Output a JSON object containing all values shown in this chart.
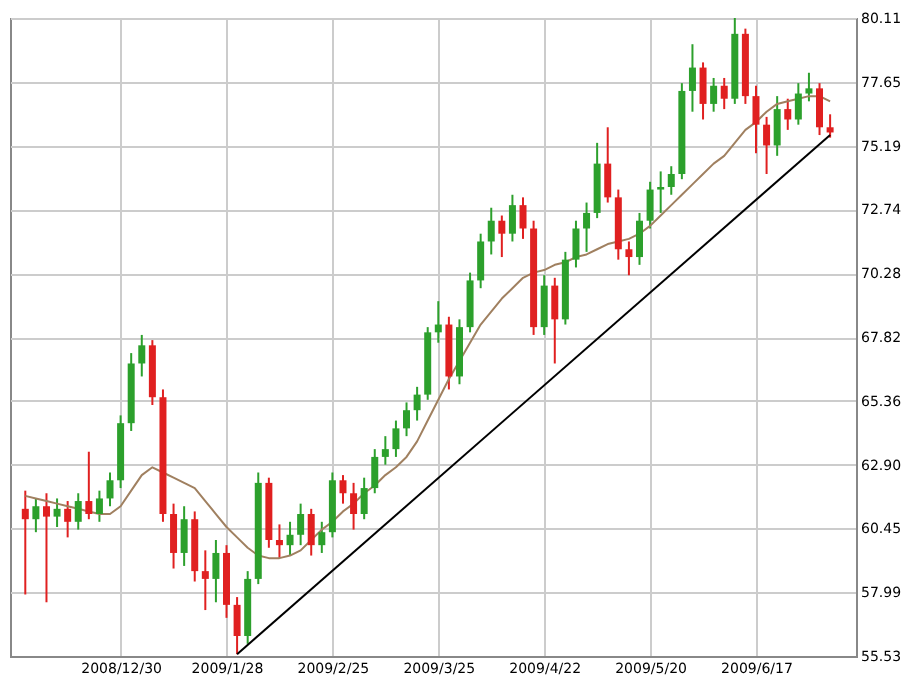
{
  "chart_data": {
    "type": "candlestick",
    "categories": [
      null,
      null,
      null,
      null,
      null,
      null,
      null,
      null,
      null,
      "2008/12/30",
      null,
      null,
      null,
      null,
      null,
      null,
      null,
      null,
      null,
      "2009/1/28",
      null,
      null,
      null,
      null,
      null,
      null,
      null,
      null,
      null,
      "2009/2/25",
      null,
      null,
      null,
      null,
      null,
      null,
      null,
      null,
      null,
      "2009/3/25",
      null,
      null,
      null,
      null,
      null,
      null,
      null,
      null,
      null,
      "2009/4/22",
      null,
      null,
      null,
      null,
      null,
      null,
      null,
      null,
      null,
      "2009/5/20",
      null,
      null,
      null,
      null,
      null,
      null,
      null,
      null,
      null,
      "2009/6/17",
      null,
      null,
      null,
      null,
      null,
      null,
      null
    ],
    "ohlc": [
      [
        61.2,
        61.9,
        57.9,
        60.8
      ],
      [
        60.8,
        61.6,
        60.3,
        61.3
      ],
      [
        61.3,
        61.8,
        57.6,
        60.9
      ],
      [
        60.9,
        61.6,
        60.5,
        61.2
      ],
      [
        61.2,
        61.5,
        60.1,
        60.7
      ],
      [
        60.7,
        61.8,
        60.4,
        61.5
      ],
      [
        61.5,
        63.4,
        60.8,
        61.0
      ],
      [
        61.0,
        61.9,
        60.7,
        61.6
      ],
      [
        61.6,
        62.6,
        61.3,
        62.3
      ],
      [
        62.3,
        64.8,
        62.0,
        64.5
      ],
      [
        64.5,
        67.2,
        64.2,
        66.8
      ],
      [
        66.8,
        67.9,
        66.3,
        67.5
      ],
      [
        67.5,
        67.7,
        65.2,
        65.5
      ],
      [
        65.5,
        65.8,
        60.7,
        61.0
      ],
      [
        61.0,
        61.4,
        58.9,
        59.5
      ],
      [
        59.5,
        61.3,
        59.0,
        60.8
      ],
      [
        60.8,
        61.1,
        58.4,
        58.8
      ],
      [
        58.8,
        59.6,
        57.3,
        58.5
      ],
      [
        58.5,
        60.0,
        57.6,
        59.5
      ],
      [
        59.5,
        59.8,
        57.0,
        57.5
      ],
      [
        57.5,
        57.8,
        55.6,
        56.3
      ],
      [
        56.3,
        58.8,
        56.0,
        58.5
      ],
      [
        58.5,
        62.6,
        58.3,
        62.2
      ],
      [
        62.2,
        62.4,
        59.7,
        60.0
      ],
      [
        60.0,
        60.6,
        59.3,
        59.8
      ],
      [
        59.8,
        60.7,
        59.4,
        60.2
      ],
      [
        60.2,
        61.4,
        59.8,
        61.0
      ],
      [
        61.0,
        61.2,
        59.4,
        59.8
      ],
      [
        59.8,
        60.7,
        59.5,
        60.3
      ],
      [
        60.3,
        62.6,
        60.1,
        62.3
      ],
      [
        62.3,
        62.5,
        61.4,
        61.8
      ],
      [
        61.8,
        62.2,
        60.4,
        61.0
      ],
      [
        61.0,
        62.4,
        60.8,
        62.0
      ],
      [
        62.0,
        63.5,
        61.8,
        63.2
      ],
      [
        63.2,
        64.0,
        62.9,
        63.5
      ],
      [
        63.5,
        64.6,
        63.2,
        64.3
      ],
      [
        64.3,
        65.3,
        64.0,
        65.0
      ],
      [
        65.0,
        65.9,
        64.6,
        65.6
      ],
      [
        65.6,
        68.2,
        65.4,
        68.0
      ],
      [
        68.0,
        69.2,
        67.6,
        68.3
      ],
      [
        68.3,
        68.6,
        65.8,
        66.3
      ],
      [
        66.3,
        68.5,
        66.0,
        68.2
      ],
      [
        68.2,
        70.3,
        68.0,
        70.0
      ],
      [
        70.0,
        71.8,
        69.7,
        71.5
      ],
      [
        71.5,
        72.8,
        71.0,
        72.3
      ],
      [
        72.3,
        72.5,
        70.9,
        71.8
      ],
      [
        71.8,
        73.3,
        71.5,
        72.9
      ],
      [
        72.9,
        73.2,
        71.6,
        72.0
      ],
      [
        72.0,
        72.3,
        67.9,
        68.2
      ],
      [
        68.2,
        70.2,
        67.9,
        69.8
      ],
      [
        69.8,
        70.1,
        66.8,
        68.5
      ],
      [
        68.5,
        71.1,
        68.3,
        70.8
      ],
      [
        70.8,
        72.3,
        70.5,
        72.0
      ],
      [
        72.0,
        73.0,
        71.1,
        72.6
      ],
      [
        72.6,
        75.3,
        72.4,
        74.5
      ],
      [
        74.5,
        75.9,
        73.0,
        73.2
      ],
      [
        73.2,
        73.5,
        70.8,
        71.2
      ],
      [
        71.2,
        71.5,
        70.2,
        70.9
      ],
      [
        70.9,
        72.6,
        70.6,
        72.3
      ],
      [
        72.3,
        73.8,
        72.0,
        73.5
      ],
      [
        73.5,
        74.2,
        72.6,
        73.6
      ],
      [
        73.6,
        74.4,
        73.3,
        74.1
      ],
      [
        74.1,
        77.6,
        73.9,
        77.3
      ],
      [
        77.3,
        79.1,
        76.5,
        78.2
      ],
      [
        78.2,
        78.4,
        76.2,
        76.8
      ],
      [
        76.8,
        77.8,
        76.5,
        77.5
      ],
      [
        77.5,
        77.8,
        76.6,
        77.0
      ],
      [
        77.0,
        80.11,
        76.8,
        79.5
      ],
      [
        79.5,
        79.7,
        76.8,
        77.1
      ],
      [
        77.1,
        77.5,
        74.9,
        76.0
      ],
      [
        76.0,
        76.3,
        74.1,
        75.2
      ],
      [
        75.2,
        77.1,
        74.8,
        76.6
      ],
      [
        76.6,
        77.0,
        75.8,
        76.2
      ],
      [
        76.2,
        77.6,
        76.0,
        77.2
      ],
      [
        77.2,
        78.0,
        76.9,
        77.4
      ],
      [
        77.4,
        77.6,
        75.6,
        75.9
      ],
      [
        75.9,
        76.4,
        75.5,
        75.7
      ]
    ],
    "colors": [
      "#e02020",
      "#2ca02c",
      "#e02020",
      "#2ca02c",
      "#e02020",
      "#2ca02c",
      "#e02020",
      "#2ca02c",
      "#2ca02c",
      "#2ca02c",
      "#2ca02c",
      "#2ca02c",
      "#e02020",
      "#e02020",
      "#e02020",
      "#2ca02c",
      "#e02020",
      "#e02020",
      "#2ca02c",
      "#e02020",
      "#e02020",
      "#2ca02c",
      "#2ca02c",
      "#e02020",
      "#e02020",
      "#2ca02c",
      "#2ca02c",
      "#e02020",
      "#2ca02c",
      "#2ca02c",
      "#e02020",
      "#e02020",
      "#2ca02c",
      "#2ca02c",
      "#2ca02c",
      "#2ca02c",
      "#2ca02c",
      "#2ca02c",
      "#2ca02c",
      "#2ca02c",
      "#e02020",
      "#2ca02c",
      "#2ca02c",
      "#2ca02c",
      "#2ca02c",
      "#e02020",
      "#2ca02c",
      "#e02020",
      "#e02020",
      "#2ca02c",
      "#e02020",
      "#2ca02c",
      "#2ca02c",
      "#2ca02c",
      "#2ca02c",
      "#e02020",
      "#e02020",
      "#e02020",
      "#2ca02c",
      "#2ca02c",
      "#2ca02c",
      "#2ca02c",
      "#2ca02c",
      "#2ca02c",
      "#e02020",
      "#2ca02c",
      "#e02020",
      "#2ca02c",
      "#e02020",
      "#e02020",
      "#e02020",
      "#2ca02c",
      "#e02020",
      "#2ca02c",
      "#2ca02c",
      "#e02020",
      "#e02020"
    ],
    "series": [
      {
        "type": "line",
        "color": "#a08060",
        "values": [
          61.7,
          61.6,
          61.5,
          61.4,
          61.3,
          61.2,
          61.1,
          61.0,
          61.0,
          61.3,
          61.9,
          62.5,
          62.8,
          62.6,
          62.4,
          62.2,
          62.0,
          61.5,
          61.0,
          60.5,
          60.1,
          59.7,
          59.4,
          59.3,
          59.3,
          59.4,
          59.6,
          60.0,
          60.4,
          60.7,
          61.1,
          61.4,
          61.8,
          62.1,
          62.5,
          62.8,
          63.2,
          63.8,
          64.6,
          65.4,
          66.2,
          66.9,
          67.6,
          68.3,
          68.8,
          69.3,
          69.7,
          70.1,
          70.3,
          70.4,
          70.6,
          70.7,
          70.9,
          71.0,
          71.2,
          71.4,
          71.5,
          71.6,
          71.8,
          72.1,
          72.5,
          72.9,
          73.3,
          73.7,
          74.1,
          74.5,
          74.8,
          75.3,
          75.8,
          76.1,
          76.5,
          76.8,
          76.9,
          77.0,
          77.1,
          77.1,
          76.9
        ]
      },
      {
        "type": "line",
        "color": "#000000",
        "values": [
          null,
          null,
          null,
          null,
          null,
          null,
          null,
          null,
          null,
          null,
          null,
          null,
          null,
          null,
          null,
          null,
          null,
          null,
          null,
          null,
          55.6,
          null,
          null,
          null,
          null,
          null,
          null,
          null,
          null,
          null,
          null,
          null,
          null,
          null,
          null,
          null,
          null,
          null,
          null,
          null,
          null,
          null,
          null,
          null,
          null,
          null,
          null,
          null,
          null,
          null,
          null,
          null,
          null,
          null,
          null,
          null,
          null,
          null,
          null,
          null,
          null,
          null,
          null,
          null,
          null,
          null,
          null,
          null,
          null,
          null,
          null,
          null,
          null,
          null,
          null,
          null,
          75.6
        ]
      }
    ],
    "ylim": [
      55.53,
      80.11
    ],
    "yticks": [
      55.53,
      57.99,
      60.45,
      {
        "value": 62.9,
        "label": "62.90"
      },
      65.36,
      67.82,
      70.28,
      72.74,
      75.19,
      77.65,
      80.11
    ],
    "grid": true
  }
}
